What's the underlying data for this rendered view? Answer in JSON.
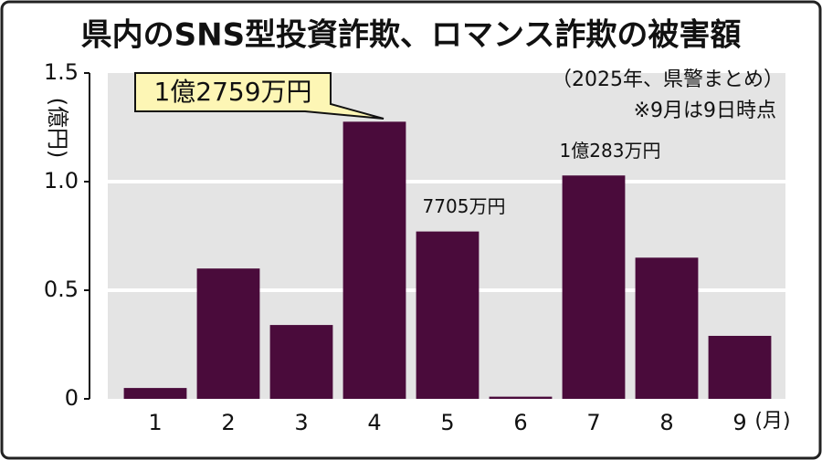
{
  "chart_data": {
    "type": "bar",
    "title": "県内のSNS型投資詐欺、ロマンス詐欺の被害額",
    "subtitle": "（2025年、県警まとめ）",
    "note": "※9月は9日時点",
    "y_label": "(億円)",
    "x_label": "(月)",
    "categories": [
      "1",
      "2",
      "3",
      "4",
      "5",
      "6",
      "7",
      "8",
      "9"
    ],
    "values": [
      0.05,
      0.6,
      0.34,
      1.2759,
      0.7705,
      0.01,
      1.0283,
      0.65,
      0.29
    ],
    "value_labels": [
      null,
      null,
      null,
      "1億2759万円",
      "7705万円",
      null,
      "1億283万円",
      null,
      null
    ],
    "color": "#4a0b3b",
    "ylim": [
      0,
      1.5
    ],
    "yticks": [
      0,
      0.5,
      {
        "value": 1,
        "label": "1.0"
      },
      1.5
    ],
    "grid": true
  }
}
